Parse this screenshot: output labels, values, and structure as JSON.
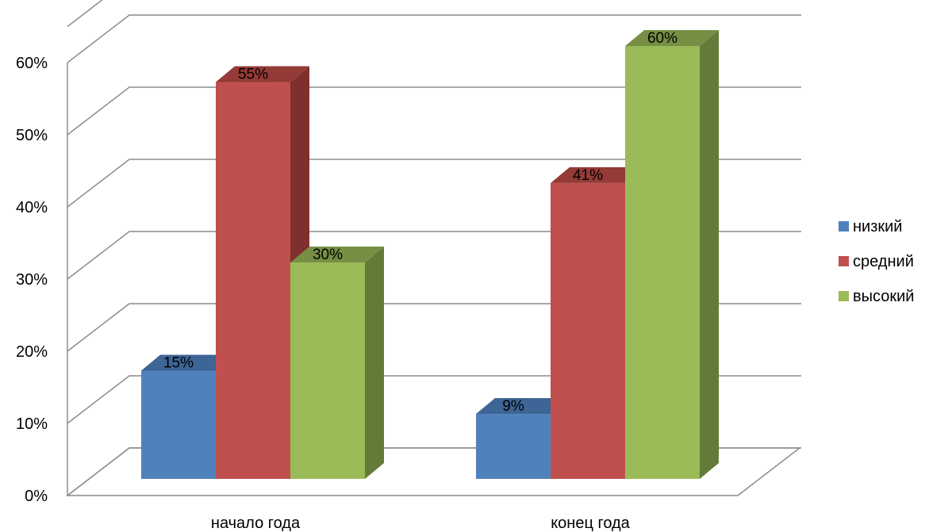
{
  "chart_data": {
    "type": "bar",
    "three_d": true,
    "categories": [
      "начало года",
      "конец года"
    ],
    "series": [
      {
        "name": "низкий",
        "values": [
          15,
          9
        ],
        "labels": [
          "15%",
          "9%"
        ],
        "color": "#4F81BD",
        "side_color": "#385D8A",
        "top_color": "#3D6595"
      },
      {
        "name": "средний",
        "values": [
          55,
          41
        ],
        "labels": [
          "55%",
          "41%"
        ],
        "color": "#C0504D",
        "side_color": "#7F2F2D",
        "top_color": "#943A37"
      },
      {
        "name": "высокий",
        "values": [
          30,
          60
        ],
        "labels": [
          "30%",
          "60%"
        ],
        "color": "#9BBB59",
        "side_color": "#647A38",
        "top_color": "#768F44"
      }
    ],
    "y_ticks": [
      "0%",
      "10%",
      "20%",
      "30%",
      "40%",
      "50%",
      "60%"
    ],
    "ylim": [
      0,
      65
    ],
    "grid": true,
    "legend_position": "right"
  }
}
